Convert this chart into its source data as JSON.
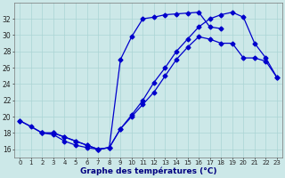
{
  "xlabel": "Graphe des températures (°C)",
  "background_color": "#cce8e8",
  "line_color": "#0000cc",
  "grid_color": "#aad4d4",
  "xlim": [
    -0.5,
    23.5
  ],
  "ylim": [
    15.0,
    34.0
  ],
  "yticks": [
    16,
    18,
    20,
    22,
    24,
    26,
    28,
    30,
    32
  ],
  "xticks": [
    0,
    1,
    2,
    3,
    4,
    5,
    6,
    7,
    8,
    9,
    10,
    11,
    12,
    13,
    14,
    15,
    16,
    17,
    18,
    19,
    20,
    21,
    22,
    23
  ],
  "curve1_x": [
    0,
    1,
    2,
    3,
    4,
    5,
    6,
    7,
    8,
    9,
    10,
    11,
    12,
    13,
    14,
    15,
    16,
    17,
    18
  ],
  "curve1_y": [
    19.5,
    18.8,
    18.0,
    17.8,
    17.0,
    16.5,
    16.2,
    16.0,
    16.2,
    27.0,
    29.8,
    32.0,
    32.2,
    32.5,
    32.6,
    32.7,
    32.8,
    31.0,
    30.8
  ],
  "curve2_x": [
    0,
    2,
    3,
    4,
    5,
    6,
    7,
    8,
    9,
    10,
    11,
    12,
    13,
    14,
    15,
    16,
    17,
    18,
    19,
    20,
    21,
    22,
    23
  ],
  "curve2_y": [
    19.5,
    18.0,
    18.0,
    17.5,
    17.0,
    16.5,
    16.0,
    16.2,
    18.5,
    20.0,
    21.5,
    23.0,
    25.0,
    27.0,
    28.5,
    29.8,
    29.5,
    29.0,
    29.0,
    27.2,
    27.2,
    26.8,
    24.8
  ],
  "curve3_x": [
    2,
    3,
    4,
    5,
    6,
    7,
    8,
    9,
    10,
    11,
    12,
    13,
    14,
    15,
    16,
    17,
    18,
    19,
    20,
    21,
    22,
    23
  ],
  "curve3_y": [
    18.0,
    18.0,
    17.5,
    17.0,
    16.5,
    16.0,
    16.2,
    18.5,
    20.2,
    22.0,
    24.2,
    26.0,
    28.0,
    29.5,
    31.0,
    32.0,
    32.5,
    32.8,
    32.2,
    29.0,
    27.2,
    24.8
  ]
}
